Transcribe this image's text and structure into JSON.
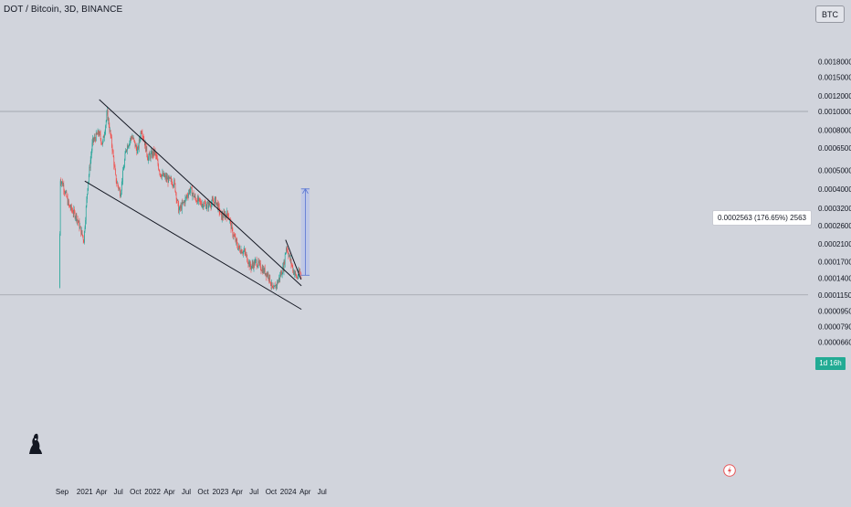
{
  "header": {
    "symbol_title": "DOT / Bitcoin, 3D, BINANCE",
    "currency_button": "BTC"
  },
  "price_scale": {
    "countdown_label": "1d 16h"
  },
  "measure_tool": {
    "label": "0.0002563 (176.65%) 2563"
  },
  "colors": {
    "background": "#d1d4dc",
    "up_candle": "#26a69a",
    "down_candle": "#ef5350",
    "trendline": "#131722",
    "measure_fill": "#b8c4ea",
    "measure_line": "#5472d3",
    "badge": "#22ab94"
  },
  "icons": {
    "logo": "tradingview-logo-icon",
    "flash": "lightning-icon"
  },
  "chart_data": {
    "type": "candlestick",
    "title": "DOT / Bitcoin, 3D, BINANCE",
    "y_scale": "log",
    "y_ticks": [
      "0.0018000",
      "0.0015000",
      "0.0012000",
      "0.0010000",
      "0.0008000",
      "0.0006500",
      "0.0005000",
      "0.0004000",
      "0.0003200",
      "0.0002600",
      "0.0002100",
      "0.0001700",
      "0.0001400",
      "0.0001150",
      "0.0000950",
      "0.0000790",
      "0.0000660"
    ],
    "x_ticks": [
      "Sep",
      "2021",
      "Apr",
      "Jul",
      "Oct",
      "2022",
      "Apr",
      "Jul",
      "Oct",
      "2023",
      "Apr",
      "Jul",
      "Oct",
      "2024",
      "Apr",
      "Jul"
    ],
    "price_path": [
      {
        "date": "2020-08-20",
        "price": 0.000125
      },
      {
        "date": "2020-08-26",
        "price": 0.00045
      },
      {
        "date": "2020-09-10",
        "price": 0.00042
      },
      {
        "date": "2020-10-10",
        "price": 0.00033
      },
      {
        "date": "2020-11-20",
        "price": 0.00029
      },
      {
        "date": "2020-12-30",
        "price": 0.00022
      },
      {
        "date": "2021-01-20",
        "price": 0.00042
      },
      {
        "date": "2021-02-15",
        "price": 0.0007
      },
      {
        "date": "2021-03-20",
        "price": 0.00078
      },
      {
        "date": "2021-04-10",
        "price": 0.00068
      },
      {
        "date": "2021-05-05",
        "price": 0.00098
      },
      {
        "date": "2021-06-01",
        "price": 0.00065
      },
      {
        "date": "2021-06-20",
        "price": 0.00045
      },
      {
        "date": "2021-07-15",
        "price": 0.00038
      },
      {
        "date": "2021-08-15",
        "price": 0.00065
      },
      {
        "date": "2021-09-15",
        "price": 0.00075
      },
      {
        "date": "2021-10-15",
        "price": 0.00062
      },
      {
        "date": "2021-11-05",
        "price": 0.00082
      },
      {
        "date": "2021-12-10",
        "price": 0.00058
      },
      {
        "date": "2022-01-15",
        "price": 0.00062
      },
      {
        "date": "2022-02-15",
        "price": 0.00048
      },
      {
        "date": "2022-03-25",
        "price": 0.00045
      },
      {
        "date": "2022-05-01",
        "price": 0.00043
      },
      {
        "date": "2022-05-25",
        "price": 0.00031
      },
      {
        "date": "2022-06-20",
        "price": 0.00034
      },
      {
        "date": "2022-07-25",
        "price": 0.0004
      },
      {
        "date": "2022-08-20",
        "price": 0.00036
      },
      {
        "date": "2022-09-20",
        "price": 0.00034
      },
      {
        "date": "2022-10-25",
        "price": 0.00033
      },
      {
        "date": "2022-12-10",
        "price": 0.00035
      },
      {
        "date": "2023-01-10",
        "price": 0.00029
      },
      {
        "date": "2023-02-15",
        "price": 0.0003
      },
      {
        "date": "2023-03-10",
        "price": 0.00024
      },
      {
        "date": "2023-04-10",
        "price": 0.0002
      },
      {
        "date": "2023-05-15",
        "price": 0.00019
      },
      {
        "date": "2023-06-15",
        "price": 0.00016
      },
      {
        "date": "2023-07-15",
        "price": 0.00017
      },
      {
        "date": "2023-08-20",
        "price": 0.000155
      },
      {
        "date": "2023-09-20",
        "price": 0.000145
      },
      {
        "date": "2023-10-15",
        "price": 0.00012
      },
      {
        "date": "2023-11-10",
        "price": 0.000135
      },
      {
        "date": "2023-12-10",
        "price": 0.00016
      },
      {
        "date": "2023-12-25",
        "price": 0.000205
      },
      {
        "date": "2024-01-10",
        "price": 0.00018
      },
      {
        "date": "2024-01-30",
        "price": 0.000155
      },
      {
        "date": "2024-02-20",
        "price": 0.00014
      },
      {
        "date": "2024-03-05",
        "price": 0.000152
      },
      {
        "date": "2024-03-13",
        "price": 0.000147
      }
    ],
    "trendlines": [
      {
        "start": {
          "date": "2021-03-20",
          "price": 0.00115
        },
        "end": {
          "date": "2024-03-12",
          "price": 0.000128
        }
      },
      {
        "start": {
          "date": "2021-01-01",
          "price": 0.00044
        },
        "end": {
          "date": "2024-03-12",
          "price": 9.7e-05
        }
      },
      {
        "start": {
          "date": "2023-12-18",
          "price": 0.00022
        },
        "end": {
          "date": "2024-03-10",
          "price": 0.000138
        }
      }
    ],
    "horizontal_lines": [
      0.001,
      0.000115
    ],
    "measure": {
      "start_date": "2024-03-10",
      "end_date": "2024-04-25",
      "low": 0.000145,
      "high": 0.0004013,
      "change": "0.0002563",
      "change_percent": "176.65%",
      "ticks": "2563"
    }
  }
}
